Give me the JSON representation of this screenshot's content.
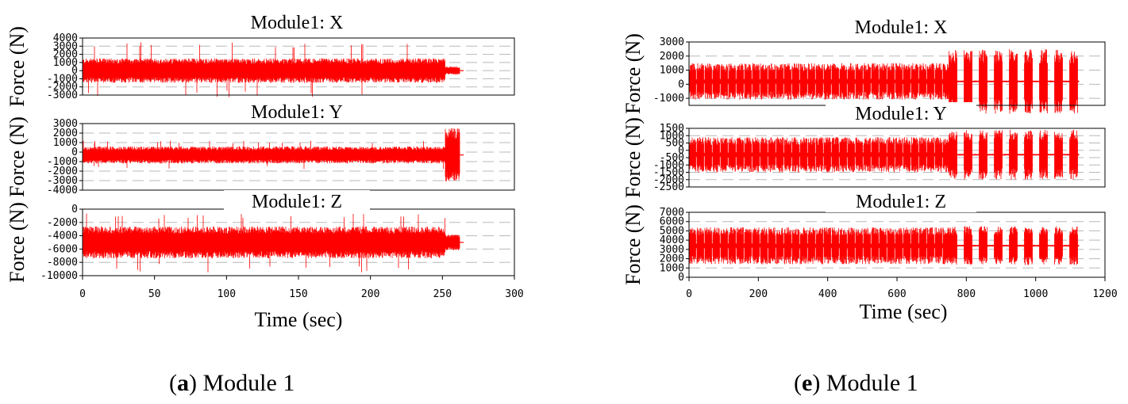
{
  "captions": [
    {
      "letter": "a",
      "text": "Module 1"
    },
    {
      "letter": "e",
      "text": "Module 1"
    }
  ],
  "chart_data": [
    {
      "type": "line",
      "panel": "a",
      "xlabel": "Time (sec)",
      "xlim": [
        0,
        300
      ],
      "xticks": [
        0,
        50,
        100,
        150,
        200,
        250,
        300
      ],
      "line_color": "#ff0000",
      "grid": "horizontal dashed",
      "subplots": [
        {
          "title": "Module1: X",
          "ylabel": "Force (N)",
          "ylim": [
            -3000,
            4000
          ],
          "yticks": [
            -3000,
            -2000,
            -1000,
            0,
            1000,
            2000,
            3000,
            4000
          ],
          "series": [
            {
              "x_range": [
                0,
                261
              ],
              "center": 0,
              "amplitude": 1500,
              "peak": 3500,
              "tail": {
                "from": 252,
                "to": 262,
                "center": 0,
                "amplitude": 500
              }
            }
          ]
        },
        {
          "title": "Module1: Y",
          "ylabel": "Force (N)",
          "ylim": [
            -4000,
            3000
          ],
          "yticks": [
            -4000,
            -3000,
            -2000,
            -1000,
            0,
            1000,
            2000,
            3000
          ],
          "series": [
            {
              "x_range": [
                0,
                261
              ],
              "center": -300,
              "amplitude": 900,
              "peak": 1500,
              "tail": {
                "from": 252,
                "to": 262,
                "center": -300,
                "amplitude": 2800
              }
            }
          ]
        },
        {
          "title": "Module1: Z",
          "ylabel": "Force (N)",
          "ylim": [
            -10000,
            0
          ],
          "yticks": [
            -10000,
            -8000,
            -6000,
            -4000,
            -2000,
            0
          ],
          "series": [
            {
              "x_range": [
                0,
                261
              ],
              "center": -5000,
              "amplitude": 2400,
              "peak": 4500,
              "tail": {
                "from": 252,
                "to": 262,
                "center": -5000,
                "amplitude": 1200
              }
            }
          ]
        }
      ]
    },
    {
      "type": "line",
      "panel": "e",
      "xlabel": "Time (sec)",
      "xlim": [
        0,
        1200
      ],
      "xticks": [
        0,
        200,
        400,
        600,
        800,
        1000,
        1200
      ],
      "line_color": "#ff0000",
      "grid": "horizontal dashed",
      "subplots": [
        {
          "title": "Module1: X",
          "ylabel": "Force (N)",
          "ylim": [
            -1500,
            3000
          ],
          "yticks": [
            -1000,
            0,
            1000,
            2000,
            3000
          ],
          "series": [
            {
              "x_range": [
                0,
                1125
              ],
              "center": 200,
              "amplitude": 1300,
              "burst_from": 750,
              "burst_amplitude": 2300
            }
          ]
        },
        {
          "title": "Module1: Y",
          "ylabel": "Force (N)",
          "ylim": [
            -2500,
            1500
          ],
          "yticks": [
            -2500,
            -2000,
            -1500,
            -1000,
            -500,
            0,
            500,
            1000,
            1500
          ],
          "series": [
            {
              "x_range": [
                0,
                1125
              ],
              "center": -300,
              "amplitude": 1200,
              "burst_from": 750,
              "burst_amplitude": 1700
            }
          ]
        },
        {
          "title": "Module1: Z",
          "ylabel": "Force (N)",
          "ylim": [
            0,
            7000
          ],
          "yticks": [
            0,
            1000,
            2000,
            3000,
            4000,
            5000,
            6000,
            7000
          ],
          "series": [
            {
              "x_range": [
                0,
                1125
              ],
              "center": 3400,
              "amplitude": 2000,
              "burst_from": 750,
              "burst_amplitude": 2100
            }
          ]
        }
      ]
    }
  ]
}
